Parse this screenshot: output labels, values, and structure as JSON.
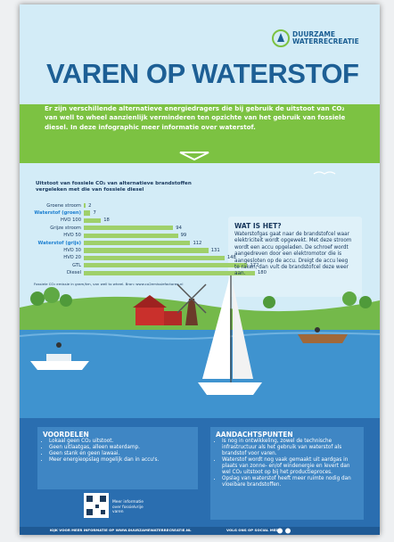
{
  "logo": {
    "line1": "DUURZAME",
    "line2": "WATERRECREATIE"
  },
  "title": "VAREN OP WATERSTOF",
  "intro": "Er zijn verschillende alternatieve energiedragers die bij gebruik de uitstoot van CO₂ van well to wheel aanzienlijk verminderen ten opzichte van het gebruik van fossiele diesel. In deze infographic meer informatie over waterstof.",
  "chart_data": {
    "type": "bar",
    "orientation": "horizontal",
    "title": "Uitstoot van fossiele CO₂ van alternatieve brandstoffen vergeleken met die van fossiele diesel",
    "categories": [
      "Groene stroom",
      "Waterstof (groen)",
      "HVO 100",
      "Grijze stroom",
      "HVO 50",
      "Waterstof (grijs)",
      "HVO 30",
      "HVO 20",
      "GTL",
      "Diesel"
    ],
    "values": [
      2,
      7,
      18,
      94,
      99,
      112,
      131,
      148,
      172,
      180
    ],
    "color": "#9fd06a",
    "highlight_categories": [
      "Waterstof (groen)",
      "Waterstof (grijs)"
    ],
    "note": "Fossiele CO₂ emissie in gram/km, van well to wheel. Bron: www.co2emissiefactoren.nl"
  },
  "what": {
    "heading": "WAT IS HET?",
    "text": "Waterstofgas gaat naar de brandstofcel waar elektriciteit wordt opgewekt. Met deze stroom wordt een accu opgeladen. De schroef wordt aangedreven door een elektromotor die is aangesloten op de accu. Dreigt de accu leeg te raken, dan vult de brandstofcel deze weer aan."
  },
  "voordelen": {
    "heading": "VOORDELEN",
    "items": [
      "Lokaal geen CO₂ uitstoot.",
      "Geen uitlaatgas, alleen waterdamp.",
      "Geen stank en geen lawaai.",
      "Meer energieopslag mogelijk dan in accu's."
    ]
  },
  "aandachtspunten": {
    "heading": "AANDACHTSPUNTEN",
    "items": [
      "Is nog in ontwikkeling, zowel de technische infrastructuur als het gebruik van waterstof als brandstof voor varen.",
      "Waterstof wordt nog vaak gemaakt uit aardgas in plaats van zonne- en/of windenergie en levert dan wel CO₂ uitstoot op bij het productieproces.",
      "Opslag van waterstof heeft meer ruimte nodig dan vloeibare brandstoffen."
    ]
  },
  "qr_text": "Meer informatie over fossielvrije varen",
  "footer": {
    "left": "KIJK VOOR MEER INFORMATIE OP WWW.DUURZAMEWATERRECREATIE.NL",
    "right": "VOLG ONS OP SOCIAL MEDIA"
  }
}
